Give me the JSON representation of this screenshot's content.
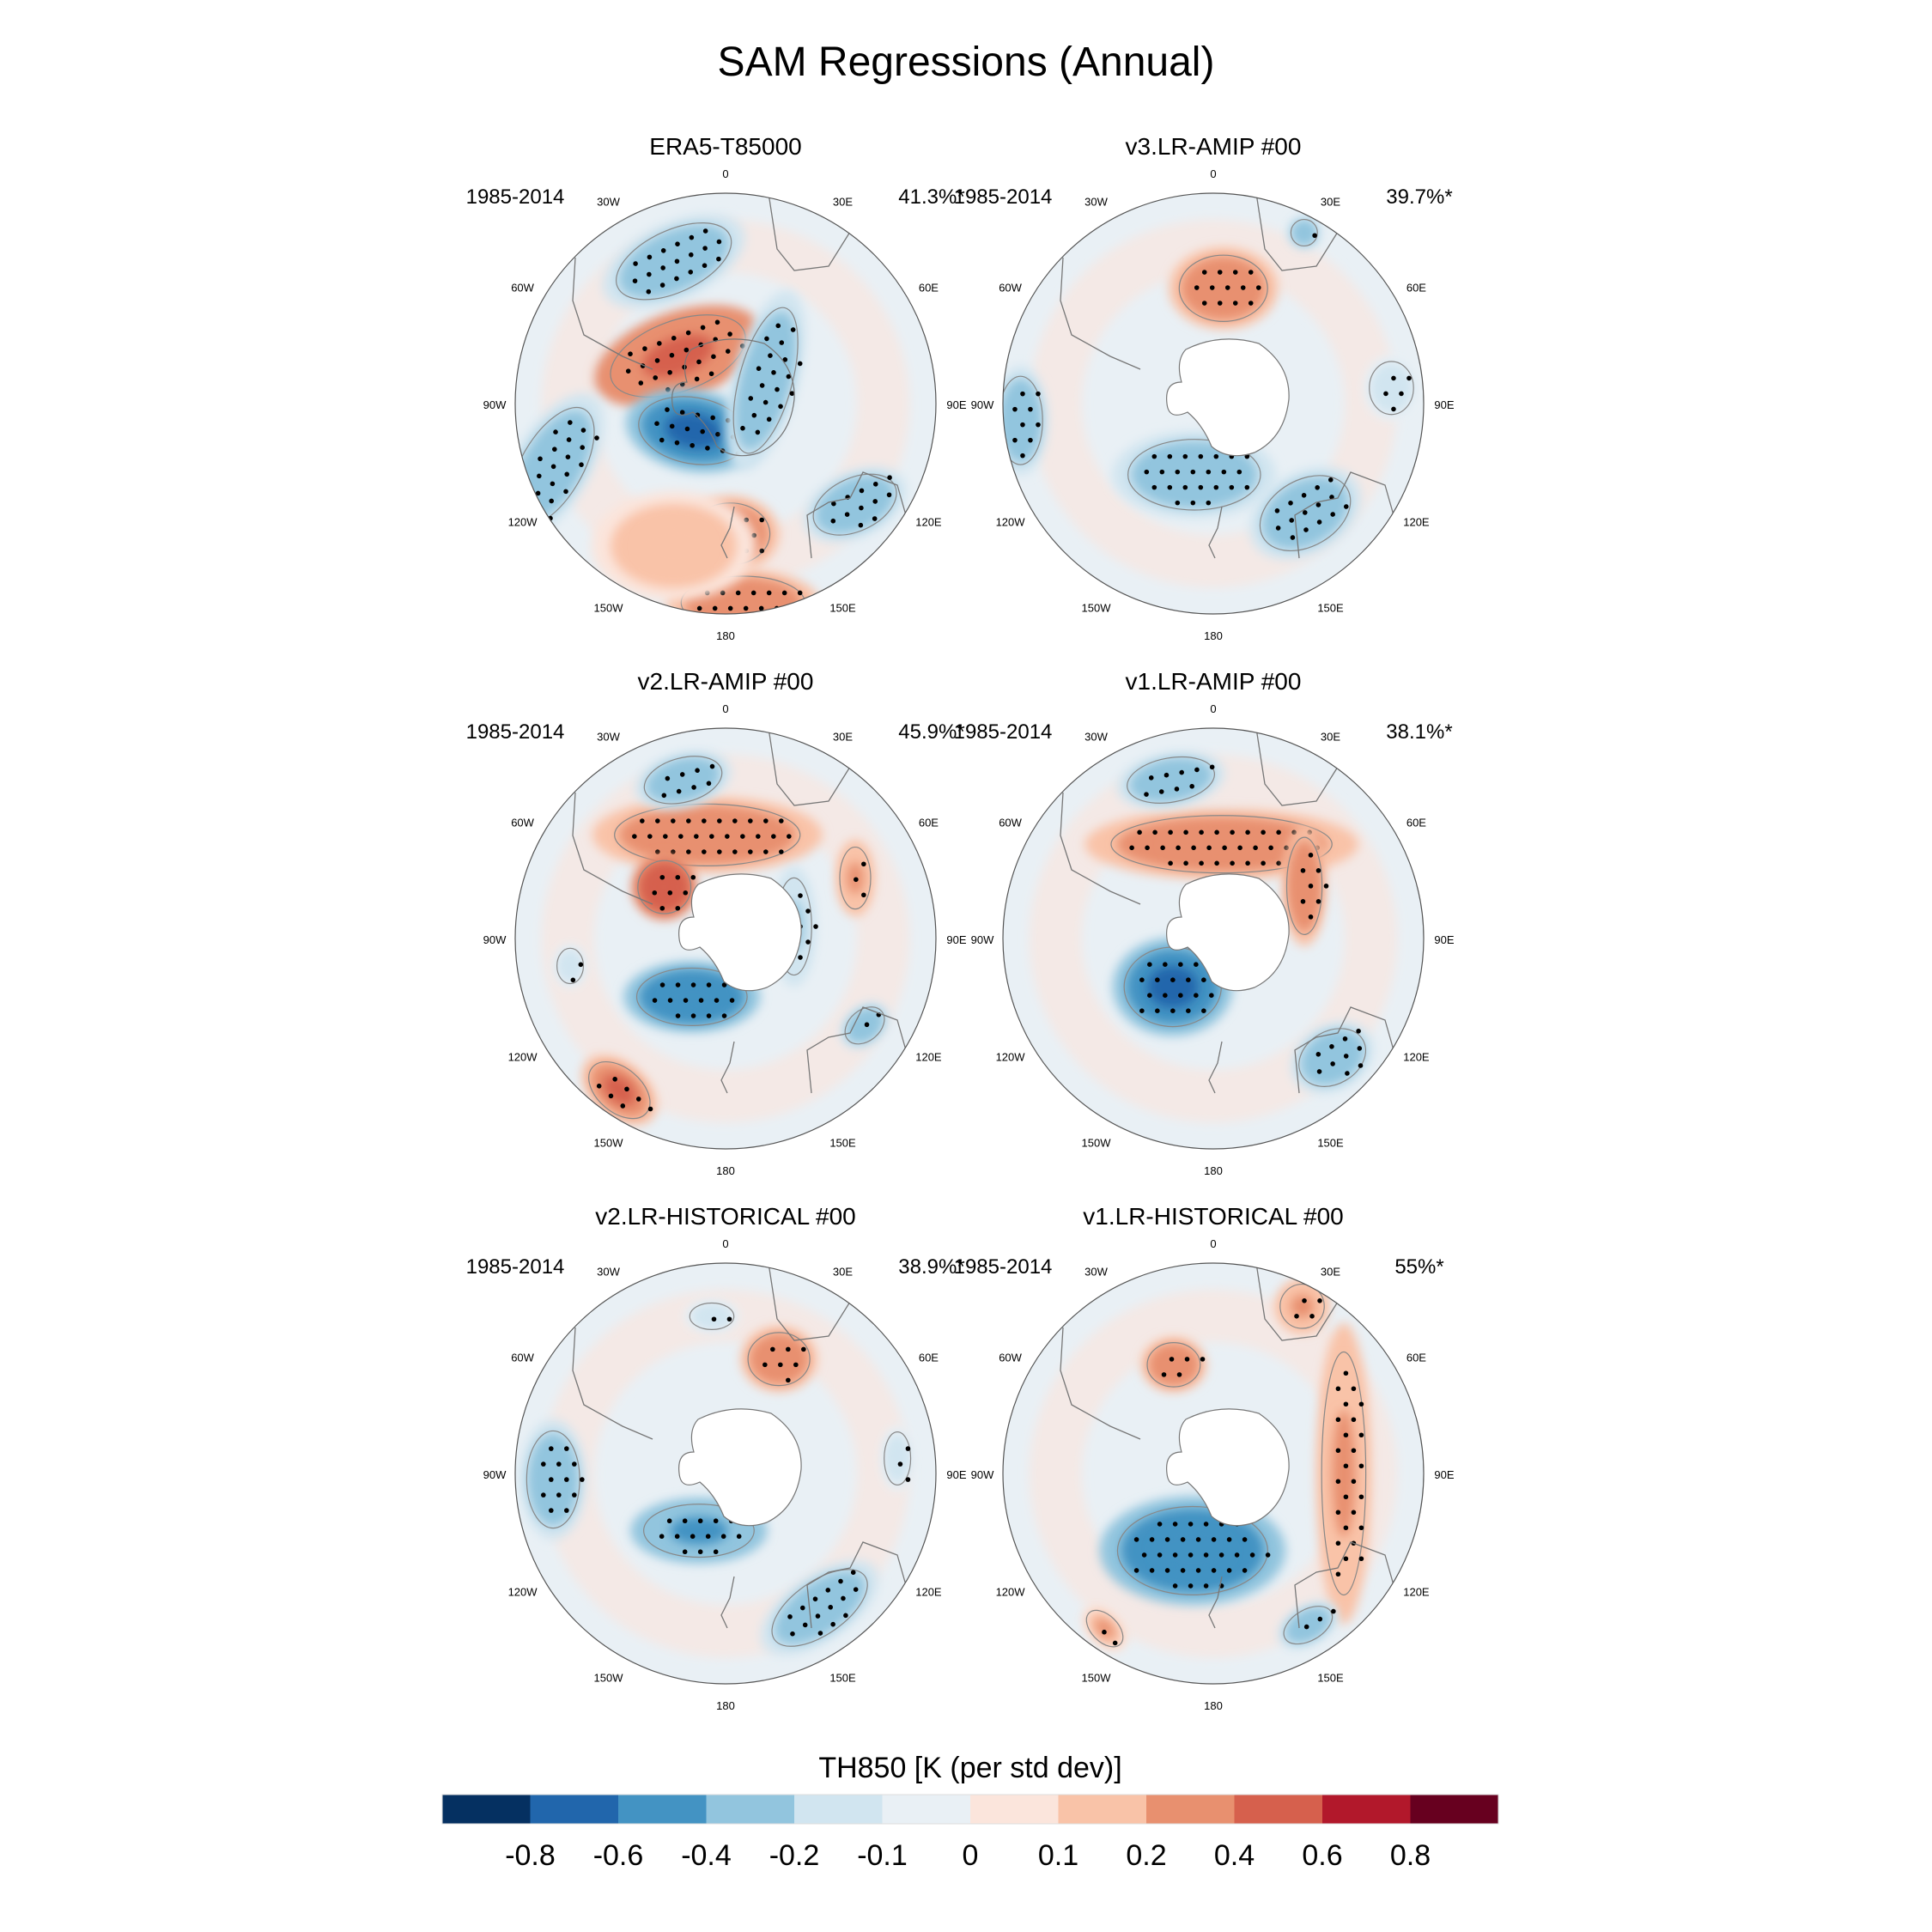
{
  "chart_data": {
    "type": "heatmap",
    "title": "SAM Regressions (Annual)",
    "projection": "south-polar-stereographic",
    "longitude_labels": [
      "0",
      "30E",
      "60E",
      "90E",
      "120E",
      "150E",
      "180",
      "150W",
      "120W",
      "90W",
      "60W",
      "30W"
    ],
    "colorbar": {
      "title": "TH850 [K (per std dev)]",
      "levels": [
        "-0.8",
        "-0.6",
        "-0.4",
        "-0.2",
        "-0.1",
        "0",
        "0.1",
        "0.2",
        "0.4",
        "0.6",
        "0.8"
      ],
      "colors": [
        "#053061",
        "#2166ac",
        "#4393c3",
        "#92c5de",
        "#d1e5f0",
        "#e9f0f5",
        "#fbe5dc",
        "#f9c3a8",
        "#e8906f",
        "#d6604d",
        "#b2182b",
        "#67001f"
      ]
    },
    "panels": [
      {
        "title": "ERA5-T85000",
        "period": "1985-2014",
        "variance_explained": "41.3%*",
        "antarctica_masked": false,
        "features": [
          {
            "lon": -20,
            "colat": 0.72,
            "value": -0.3,
            "rx": 0.28,
            "ry": 0.14,
            "rot": -25,
            "stipple": true
          },
          {
            "lon": -45,
            "colat": 0.32,
            "value": 0.45,
            "rx": 0.32,
            "ry": 0.16,
            "rot": -20,
            "stipple": true
          },
          {
            "lon": -130,
            "colat": 0.2,
            "value": -0.65,
            "rx": 0.25,
            "ry": 0.15,
            "rot": 10,
            "stipple": true
          },
          {
            "lon": 60,
            "colat": 0.22,
            "value": -0.35,
            "rx": 0.12,
            "ry": 0.34,
            "rot": 15,
            "stipple": true
          },
          {
            "lon": -110,
            "colat": 0.88,
            "value": -0.35,
            "rx": 0.14,
            "ry": 0.3,
            "rot": 30,
            "stipple": true
          },
          {
            "lon": 178,
            "colat": 0.62,
            "value": 0.3,
            "rx": 0.18,
            "ry": 0.14,
            "rot": 0,
            "stipple": true
          },
          {
            "lon": 175,
            "colat": 0.95,
            "value": 0.3,
            "rx": 0.28,
            "ry": 0.12,
            "rot": 0,
            "stipple": true
          },
          {
            "lon": 128,
            "colat": 0.78,
            "value": -0.3,
            "rx": 0.2,
            "ry": 0.12,
            "rot": -25,
            "stipple": true
          },
          {
            "lon": -160,
            "colat": 0.72,
            "value": 0.15,
            "rx": 0.3,
            "ry": 0.2,
            "rot": 0,
            "stipple": false
          }
        ]
      },
      {
        "title": "v3.LR-AMIP  #00",
        "period": "1985-2014",
        "variance_explained": "39.7%*",
        "antarctica_masked": true,
        "features": [
          {
            "lon": 5,
            "colat": 0.55,
            "value": 0.3,
            "rx": 0.2,
            "ry": 0.15,
            "rot": 0,
            "stipple": true
          },
          {
            "lon": -165,
            "colat": 0.35,
            "value": -0.4,
            "rx": 0.3,
            "ry": 0.16,
            "rot": 0,
            "stipple": true
          },
          {
            "lon": 140,
            "colat": 0.68,
            "value": -0.3,
            "rx": 0.22,
            "ry": 0.15,
            "rot": -30,
            "stipple": true
          },
          {
            "lon": 85,
            "colat": 0.85,
            "value": -0.2,
            "rx": 0.1,
            "ry": 0.12,
            "rot": 0,
            "stipple": true
          },
          {
            "lon": -95,
            "colat": 0.92,
            "value": -0.3,
            "rx": 0.1,
            "ry": 0.2,
            "rot": 0,
            "stipple": true
          },
          {
            "lon": 28,
            "colat": 0.92,
            "value": -0.3,
            "rx": 0.06,
            "ry": 0.06,
            "rot": 0,
            "stipple": true
          }
        ]
      },
      {
        "title": "v2.LR-AMIP  #00",
        "period": "1985-2014",
        "variance_explained": "45.9%*",
        "antarctica_masked": true,
        "features": [
          {
            "lon": -10,
            "colat": 0.5,
            "value": 0.35,
            "rx": 0.42,
            "ry": 0.14,
            "rot": 0,
            "stipple": true
          },
          {
            "lon": -50,
            "colat": 0.38,
            "value": 0.55,
            "rx": 0.12,
            "ry": 0.12,
            "rot": 0,
            "stipple": true
          },
          {
            "lon": -15,
            "colat": 0.78,
            "value": -0.3,
            "rx": 0.18,
            "ry": 0.1,
            "rot": -15,
            "stipple": true
          },
          {
            "lon": -150,
            "colat": 0.32,
            "value": -0.55,
            "rx": 0.25,
            "ry": 0.13,
            "rot": 0,
            "stipple": true
          },
          {
            "lon": 80,
            "colat": 0.33,
            "value": -0.25,
            "rx": 0.08,
            "ry": 0.22,
            "rot": 0,
            "stipple": true
          },
          {
            "lon": 65,
            "colat": 0.68,
            "value": 0.25,
            "rx": 0.07,
            "ry": 0.14,
            "rot": 0,
            "stipple": true
          },
          {
            "lon": -145,
            "colat": 0.88,
            "value": 0.4,
            "rx": 0.16,
            "ry": 0.1,
            "rot": 40,
            "stipple": true
          },
          {
            "lon": 122,
            "colat": 0.78,
            "value": -0.3,
            "rx": 0.1,
            "ry": 0.07,
            "rot": -40,
            "stipple": true
          },
          {
            "lon": -100,
            "colat": 0.75,
            "value": -0.2,
            "rx": 0.06,
            "ry": 0.08,
            "rot": 0,
            "stipple": true
          }
        ]
      },
      {
        "title": "v1.LR-AMIP  #00",
        "period": "1985-2014",
        "variance_explained": "38.1%*",
        "antarctica_masked": true,
        "features": [
          {
            "lon": 5,
            "colat": 0.45,
            "value": 0.35,
            "rx": 0.5,
            "ry": 0.13,
            "rot": 0,
            "stipple": true
          },
          {
            "lon": -15,
            "colat": 0.78,
            "value": -0.3,
            "rx": 0.2,
            "ry": 0.1,
            "rot": -10,
            "stipple": true
          },
          {
            "lon": -140,
            "colat": 0.3,
            "value": -0.75,
            "rx": 0.22,
            "ry": 0.18,
            "rot": 0,
            "stipple": true
          },
          {
            "lon": 60,
            "colat": 0.5,
            "value": 0.3,
            "rx": 0.08,
            "ry": 0.22,
            "rot": 0,
            "stipple": true
          },
          {
            "lon": 135,
            "colat": 0.8,
            "value": -0.35,
            "rx": 0.16,
            "ry": 0.12,
            "rot": -30,
            "stipple": true
          }
        ]
      },
      {
        "title": "v2.LR-HISTORICAL  #00",
        "period": "1985-2014",
        "variance_explained": "38.9%*",
        "antarctica_masked": true,
        "features": [
          {
            "lon": 25,
            "colat": 0.6,
            "value": 0.35,
            "rx": 0.14,
            "ry": 0.12,
            "rot": 0,
            "stipple": true
          },
          {
            "lon": -155,
            "colat": 0.3,
            "value": -0.5,
            "rx": 0.25,
            "ry": 0.12,
            "rot": 0,
            "stipple": true
          },
          {
            "lon": -92,
            "colat": 0.82,
            "value": -0.35,
            "rx": 0.12,
            "ry": 0.22,
            "rot": 0,
            "stipple": true
          },
          {
            "lon": 145,
            "colat": 0.78,
            "value": -0.4,
            "rx": 0.25,
            "ry": 0.12,
            "rot": -35,
            "stipple": true
          },
          {
            "lon": 85,
            "colat": 0.82,
            "value": -0.2,
            "rx": 0.06,
            "ry": 0.12,
            "rot": 0,
            "stipple": true
          },
          {
            "lon": -5,
            "colat": 0.75,
            "value": -0.2,
            "rx": 0.1,
            "ry": 0.06,
            "rot": 0,
            "stipple": true
          }
        ]
      },
      {
        "title": "v1.LR-HISTORICAL  #00",
        "period": "1985-2014",
        "variance_explained": "55%*",
        "antarctica_masked": true,
        "features": [
          {
            "lon": -165,
            "colat": 0.38,
            "value": -0.6,
            "rx": 0.34,
            "ry": 0.2,
            "rot": 0,
            "stipple": true
          },
          {
            "lon": 90,
            "colat": 0.62,
            "value": 0.25,
            "rx": 0.1,
            "ry": 0.55,
            "rot": 0,
            "stipple": true
          },
          {
            "lon": -20,
            "colat": 0.55,
            "value": 0.3,
            "rx": 0.12,
            "ry": 0.1,
            "rot": 0,
            "stipple": true
          },
          {
            "lon": 148,
            "colat": 0.85,
            "value": -0.3,
            "rx": 0.12,
            "ry": 0.07,
            "rot": -30,
            "stipple": true
          },
          {
            "lon": -145,
            "colat": 0.9,
            "value": 0.2,
            "rx": 0.1,
            "ry": 0.06,
            "rot": 45,
            "stipple": true
          },
          {
            "lon": 28,
            "colat": 0.9,
            "value": 0.25,
            "rx": 0.1,
            "ry": 0.1,
            "rot": 0,
            "stipple": true
          }
        ]
      }
    ]
  }
}
